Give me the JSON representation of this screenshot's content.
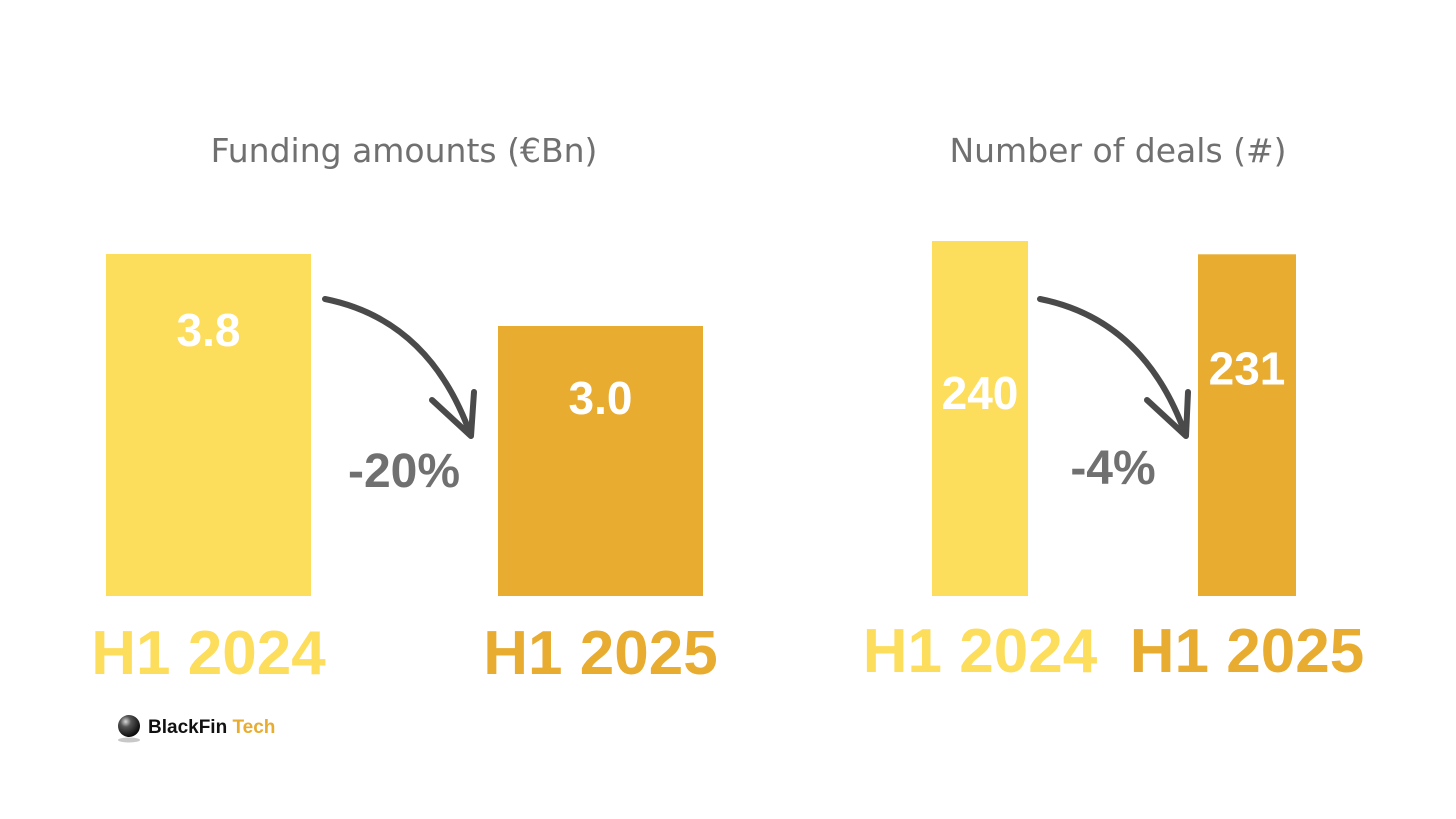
{
  "colors": {
    "h1_2024": "#FDDD5C",
    "h1_2025": "#E8AC30",
    "arrow": "#4A4A4A",
    "text_gray": "#707070"
  },
  "chart_data": [
    {
      "type": "bar",
      "title": "Funding amounts (€Bn)",
      "categories": [
        "H1 2024",
        "H1 2025"
      ],
      "values": [
        3.8,
        3.0
      ],
      "value_labels": [
        "3.8",
        "3.0"
      ],
      "change_label": "-20%",
      "ylim": [
        0,
        3.8
      ],
      "grid": false
    },
    {
      "type": "bar",
      "title": "Number of deals (#)",
      "categories": [
        "H1 2024",
        "H1 2025"
      ],
      "values": [
        240,
        231
      ],
      "value_labels": [
        "240",
        "231"
      ],
      "change_label": "-4%",
      "ylim": [
        0,
        240
      ],
      "grid": false
    }
  ],
  "logo": {
    "brand": "BlackFin",
    "suffix": " Tech",
    "icon": "sphere-logo-icon"
  }
}
